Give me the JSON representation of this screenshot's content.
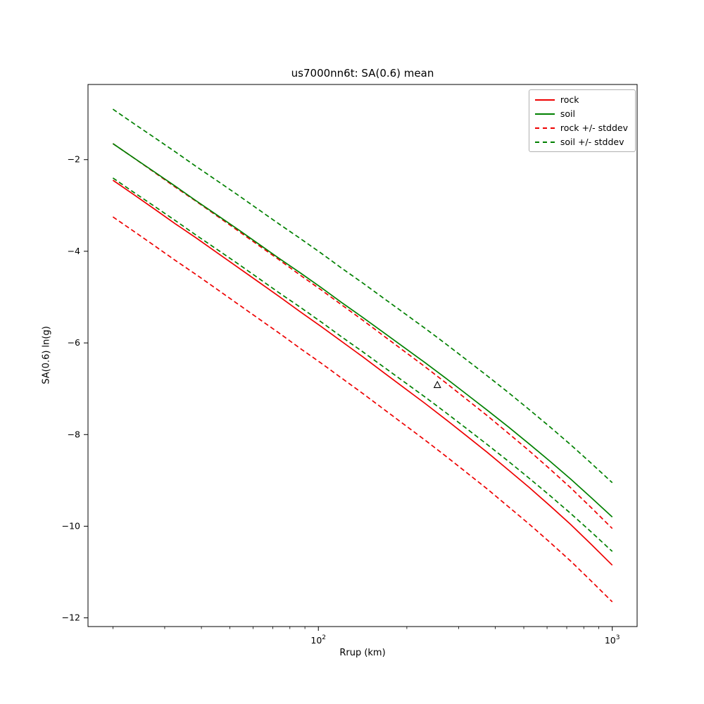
{
  "chart_data": {
    "type": "line",
    "title": "us7000nn6t: SA(0.6) mean",
    "xlabel": "Rrup (km)",
    "ylabel": "SA(0.6) ln(g)",
    "x_scale": "log",
    "grid": false,
    "legend_position": "upper right",
    "xlim": [
      16.45,
      1215
    ],
    "ylim": [
      -12.19,
      -0.36
    ],
    "x_ticks": [
      100,
      1000
    ],
    "x_tick_labels": [
      "10^2",
      "10^3"
    ],
    "y_ticks": [
      -2,
      -4,
      -6,
      -8,
      -10,
      -12
    ],
    "y_tick_labels": [
      "−2",
      "−4",
      "−6",
      "−8",
      "−10",
      "−12"
    ],
    "x": [
      20,
      23.5,
      27.7,
      32.6,
      38.4,
      45.2,
      53.2,
      62.6,
      73.7,
      86.7,
      102.1,
      120.1,
      141.4,
      166.4,
      195.9,
      230.6,
      271.4,
      319.4,
      376,
      442.5,
      520.8,
      613,
      721.5,
      849.2,
      1000
    ],
    "series": [
      {
        "name": "rock",
        "color": "#ee0000",
        "style": "solid",
        "values": [
          -2.45,
          -2.76,
          -3.08,
          -3.4,
          -3.71,
          -4.03,
          -4.35,
          -4.67,
          -4.99,
          -5.32,
          -5.64,
          -5.97,
          -6.3,
          -6.64,
          -6.98,
          -7.32,
          -7.67,
          -8.03,
          -8.39,
          -8.77,
          -9.15,
          -9.55,
          -9.96,
          -10.4,
          -10.85
        ]
      },
      {
        "name": "soil",
        "color": "#008000",
        "style": "solid",
        "values": [
          -1.65,
          -1.96,
          -2.27,
          -2.58,
          -2.9,
          -3.21,
          -3.52,
          -3.84,
          -4.16,
          -4.47,
          -4.79,
          -5.12,
          -5.44,
          -5.77,
          -6.1,
          -6.43,
          -6.77,
          -7.12,
          -7.47,
          -7.83,
          -8.2,
          -8.58,
          -8.97,
          -9.38,
          -9.8
        ]
      },
      {
        "name": "rock +/- stddev",
        "color": "#ee0000",
        "style": "dashed",
        "band_of": "rock",
        "stddev": 0.8
      },
      {
        "name": "soil +/- stddev",
        "color": "#008000",
        "style": "dashed",
        "band_of": "soil",
        "stddev": 0.75
      }
    ],
    "marker": {
      "x": 254,
      "y": -6.92,
      "symbol": "triangle-up",
      "edge_color": "#000000",
      "fill_color": "#ffffff"
    }
  }
}
